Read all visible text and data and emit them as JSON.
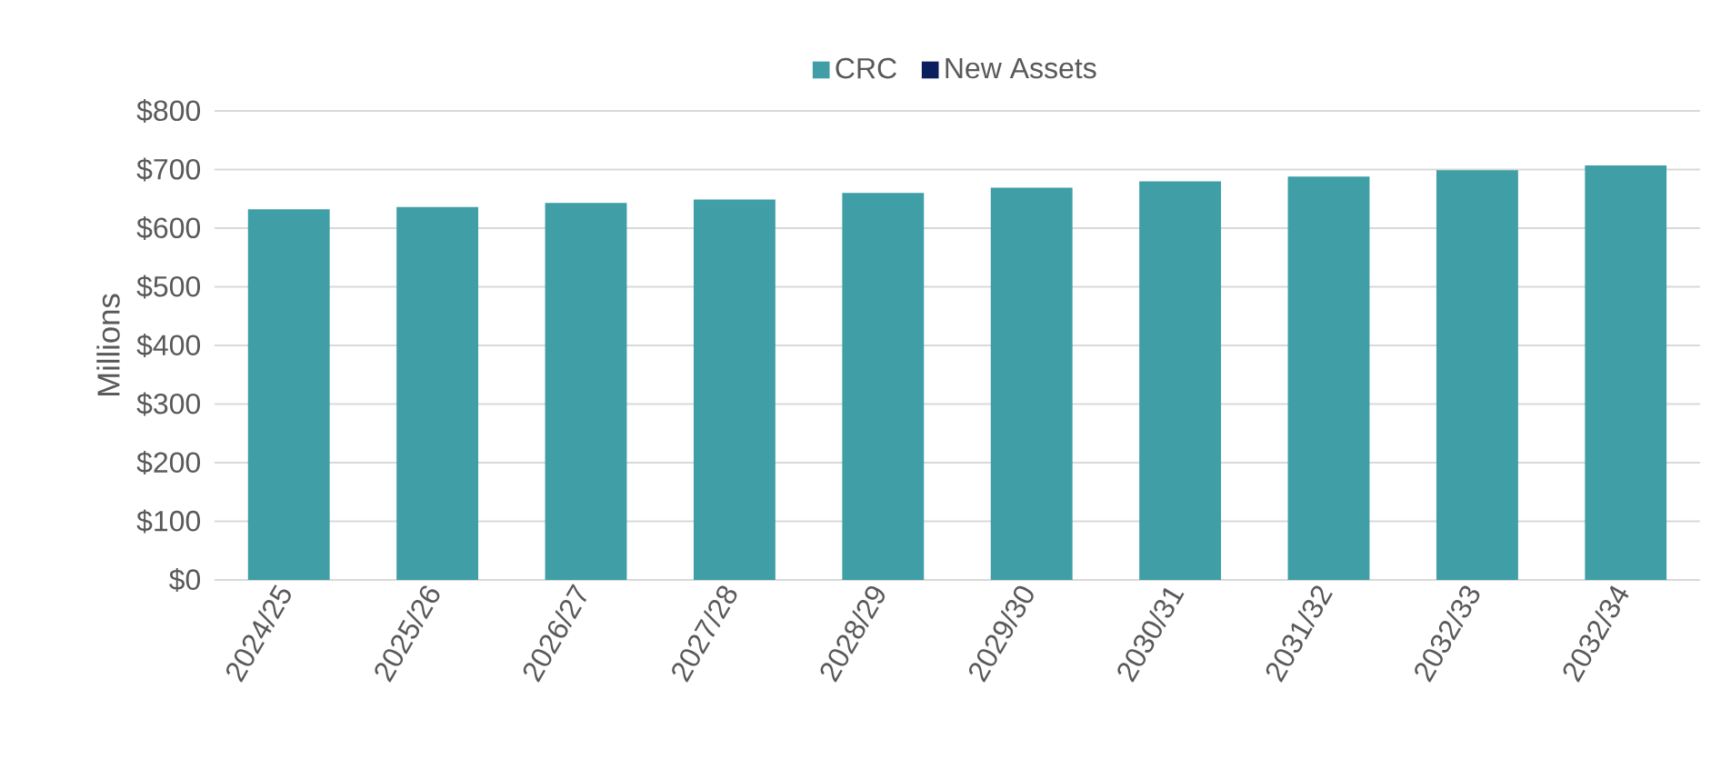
{
  "chart_data": {
    "type": "bar",
    "stacked": true,
    "ylabel": "Millions",
    "categories": [
      "2024/25",
      "2025/26",
      "2026/27",
      "2027/28",
      "2028/29",
      "2029/30",
      "2030/31",
      "2031/32",
      "2032/33",
      "2032/34"
    ],
    "series": [
      {
        "name": "CRC",
        "color": "#3f9ea6",
        "values": [
          632,
          636,
          643,
          649,
          660,
          669,
          680,
          688,
          699,
          707
        ]
      },
      {
        "name": "New Assets",
        "color": "#0b1f5c",
        "values": [
          0,
          0,
          0,
          0,
          0,
          0,
          0,
          0,
          0,
          0
        ]
      }
    ],
    "ylim": [
      0,
      800
    ],
    "yticks": [
      {
        "value": 0,
        "label": "$0"
      },
      {
        "value": 100,
        "label": "$100"
      },
      {
        "value": 200,
        "label": "$200"
      },
      {
        "value": 300,
        "label": "$300"
      },
      {
        "value": 400,
        "label": "$400"
      },
      {
        "value": 500,
        "label": "$500"
      },
      {
        "value": 600,
        "label": "$600"
      },
      {
        "value": 700,
        "label": "$700"
      },
      {
        "value": 800,
        "label": "$800"
      }
    ],
    "grid": "y",
    "legend": "top"
  }
}
